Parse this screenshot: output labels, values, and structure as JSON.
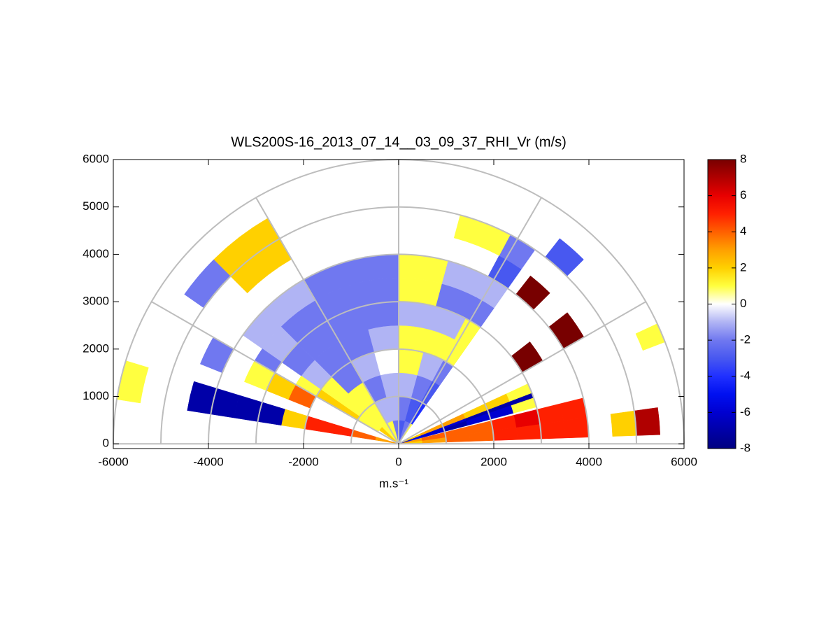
{
  "chart_data": {
    "type": "rhi",
    "title": "WLS200S-16_2013_07_14__03_09_37_RHI_Vr (m/s)",
    "xlabel": "m.s⁻¹",
    "xlim": [
      -6000,
      6000
    ],
    "ylim": [
      -100,
      6000
    ],
    "xticks": [
      -6000,
      -4000,
      -2000,
      0,
      2000,
      4000,
      6000
    ],
    "yticks": [
      0,
      1000,
      2000,
      3000,
      4000,
      5000,
      6000
    ],
    "range_rings": [
      1000,
      2000,
      3000,
      4000,
      5000,
      6000
    ],
    "angle_spokes": [
      0,
      30,
      60,
      90,
      120,
      150,
      180
    ],
    "clim": [
      -8,
      8
    ],
    "cticks": [
      -8,
      -6,
      -4,
      -2,
      0,
      2,
      4,
      6,
      8
    ],
    "colormap": [
      "#000080",
      "#0000a8",
      "#0000d0",
      "#0010f0",
      "#2030ff",
      "#4858f0",
      "#7078f0",
      "#b0b4f4",
      "#ffffff",
      "#ffff40",
      "#ffd000",
      "#ffa000",
      "#ff6000",
      "#ff2000",
      "#e80000",
      "#b00000",
      "#780000"
    ],
    "ranges": [
      0,
      500,
      1000,
      1500,
      2000,
      2500,
      3000,
      3500,
      4000,
      4500,
      5000,
      5500,
      6000
    ],
    "beams": [
      {
        "angles": [
          2,
          8
        ],
        "values": [
          2,
          3,
          4,
          4,
          5,
          5,
          5,
          5,
          null,
          2,
          7,
          null
        ]
      },
      {
        "angles": [
          8,
          14
        ],
        "values": [
          3,
          4,
          4,
          4,
          5,
          6,
          5,
          5,
          null,
          null,
          null,
          null
        ]
      },
      {
        "angles": [
          15,
          19
        ],
        "values": [
          -5,
          -6,
          -7,
          -6,
          -6,
          1,
          null,
          null,
          null,
          null,
          null,
          null
        ]
      },
      {
        "angles": [
          19,
          21
        ],
        "values": [
          -6,
          -6,
          -6,
          -7,
          -7,
          -7,
          null,
          null,
          null,
          null,
          null,
          null
        ]
      },
      {
        "angles": [
          21,
          25
        ],
        "values": [
          2,
          3,
          3,
          2,
          2,
          1,
          null,
          null,
          null,
          null,
          null,
          1
        ]
      },
      {
        "angles": [
          30,
          38
        ],
        "values": [
          null,
          null,
          null,
          null,
          null,
          null,
          8,
          null,
          8,
          null,
          null,
          null
        ]
      },
      {
        "angles": [
          45,
          52
        ],
        "values": [
          null,
          null,
          null,
          null,
          null,
          null,
          null,
          null,
          8,
          null,
          -3,
          null
        ]
      },
      {
        "angles": [
          55,
          62
        ],
        "values": [
          1,
          -4,
          -3,
          -2,
          1,
          1,
          -2,
          -1,
          -3,
          -2,
          null,
          null
        ]
      },
      {
        "angles": [
          62,
          75
        ],
        "values": [
          -2,
          -3,
          -2,
          -1,
          1,
          -1,
          -2,
          -1,
          null,
          1,
          null,
          null
        ]
      },
      {
        "angles": [
          75,
          90
        ],
        "values": [
          -3,
          -2,
          -1,
          1,
          1,
          -1,
          1,
          1,
          null,
          null,
          null,
          null
        ]
      },
      {
        "angles": [
          90,
          105
        ],
        "values": [
          -2,
          -1,
          -1,
          0,
          -1,
          -2,
          -2,
          -2,
          null,
          null,
          null,
          null
        ]
      },
      {
        "angles": [
          105,
          120
        ],
        "values": [
          1,
          -1,
          -2,
          -1,
          -2,
          -2,
          -2,
          -2,
          null,
          null,
          null,
          null
        ]
      },
      {
        "angles": [
          120,
          135
        ],
        "values": [
          1,
          1,
          1,
          -2,
          -2,
          -2,
          -2,
          -1,
          null,
          2,
          2,
          null
        ]
      },
      {
        "angles": [
          135,
          145
        ],
        "values": [
          2,
          1,
          1,
          1,
          -1,
          -2,
          -1,
          -1,
          null,
          null,
          -2,
          null
        ]
      },
      {
        "angles": [
          145,
          150
        ],
        "values": [
          null,
          1,
          2,
          2,
          1,
          null,
          -2,
          null,
          null,
          null,
          null,
          null
        ]
      },
      {
        "angles": [
          150,
          158
        ],
        "values": [
          null,
          null,
          null,
          null,
          4,
          2,
          1,
          null,
          -2,
          null,
          null,
          null
        ]
      },
      {
        "angles": [
          163,
          171
        ],
        "values": [
          3,
          4,
          5,
          5,
          2,
          -7,
          -7,
          -7,
          -7,
          null,
          null,
          1
        ]
      }
    ]
  }
}
